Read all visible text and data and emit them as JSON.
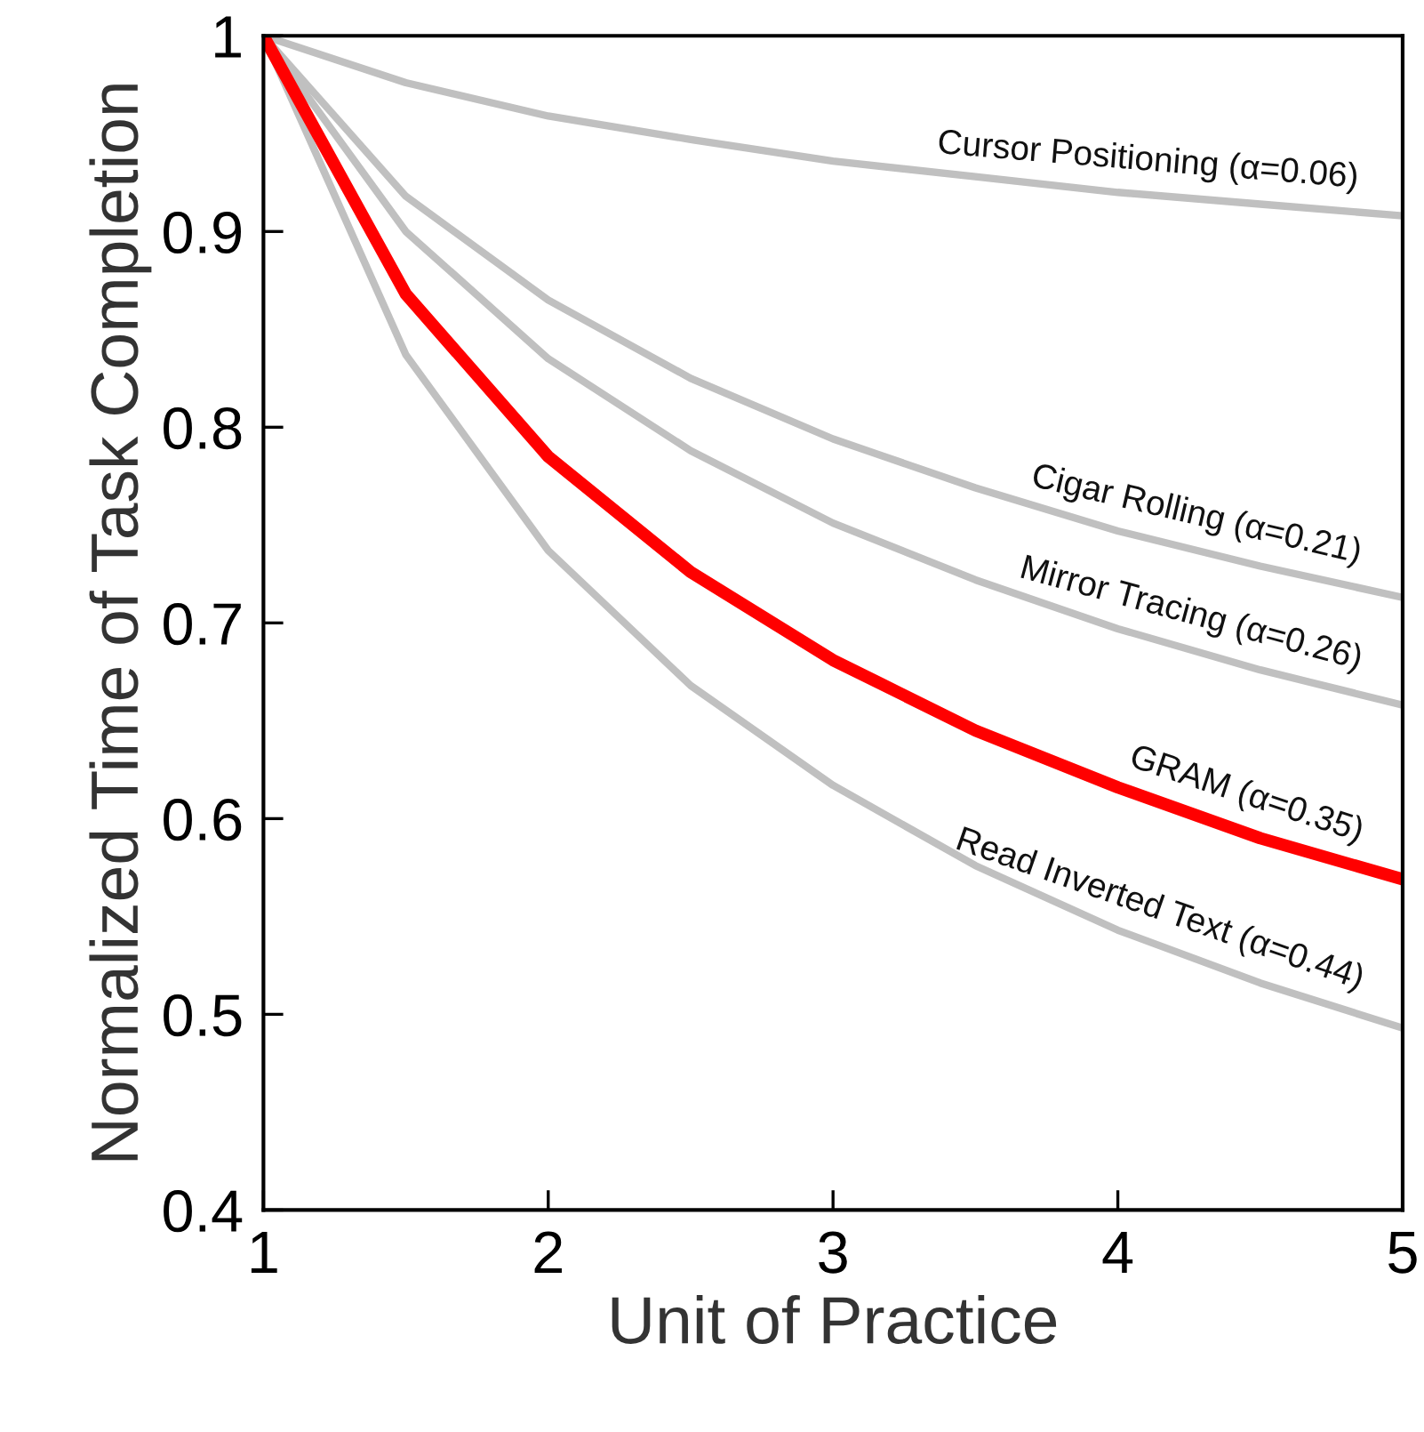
{
  "chart_data": {
    "type": "line",
    "xlabel": "Unit of Practice",
    "ylabel": "Normalized Time of Task Completion",
    "x": [
      1,
      1.5,
      2,
      2.5,
      3,
      3.5,
      4,
      4.5,
      5
    ],
    "series": [
      {
        "name": "Cursor Positioning (α=0.06)",
        "color": "#c0c0c0",
        "values": [
          1,
          0.976,
          0.959,
          0.947,
          0.936,
          0.928,
          0.92,
          0.914,
          0.908
        ]
      },
      {
        "name": "Cigar Rolling (α=0.21)",
        "color": "#c0c0c0",
        "values": [
          1,
          0.918,
          0.865,
          0.825,
          0.794,
          0.769,
          0.747,
          0.729,
          0.713
        ]
      },
      {
        "name": "Mirror Tracing (α=0.26)",
        "color": "#c0c0c0",
        "values": [
          1,
          0.9,
          0.835,
          0.788,
          0.751,
          0.722,
          0.697,
          0.676,
          0.658
        ]
      },
      {
        "name": "Read Inverted Text (α=0.44)",
        "color": "#c0c0c0",
        "values": [
          1,
          0.837,
          0.737,
          0.668,
          0.617,
          0.576,
          0.543,
          0.516,
          0.493
        ]
      },
      {
        "name": "GRAM (α=0.35)",
        "color": "#ff0000",
        "values": [
          1,
          0.868,
          0.785,
          0.726,
          0.681,
          0.645,
          0.616,
          0.59,
          0.569
        ]
      }
    ],
    "xlim": [
      1,
      5
    ],
    "ylim": [
      0.4,
      1
    ],
    "xticks": [
      1,
      2,
      3,
      4,
      5
    ],
    "yticks": [
      0.4,
      0.5,
      0.6,
      0.7,
      0.8,
      0.9,
      1
    ],
    "grid": false,
    "legend": false,
    "marker": "none",
    "line_style": "solid"
  }
}
